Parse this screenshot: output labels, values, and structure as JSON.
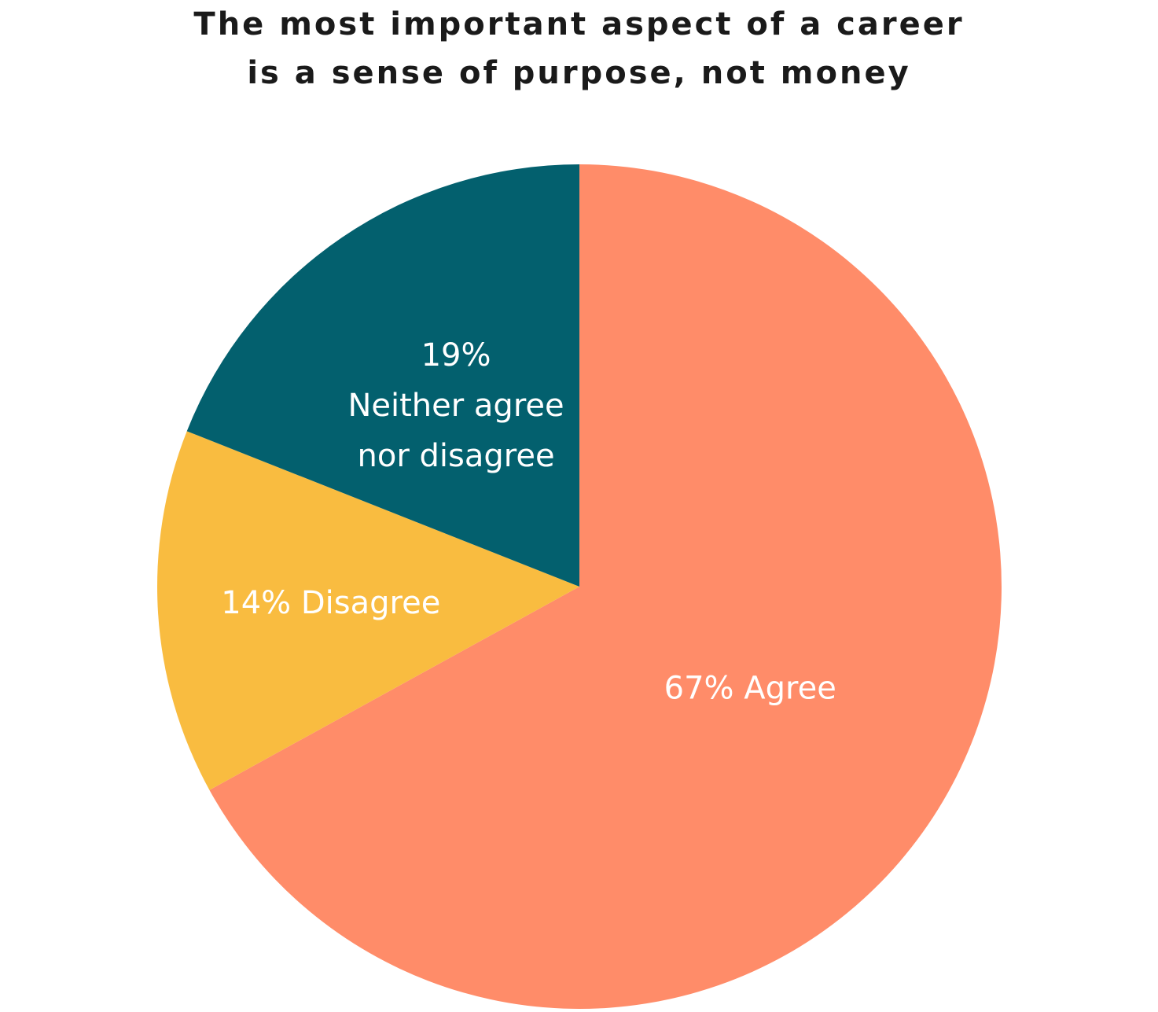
{
  "chart_data": {
    "type": "pie",
    "title_lines": [
      "The most important aspect of a career",
      "is a sense of purpose, not money"
    ],
    "slices": [
      {
        "name": "Agree",
        "value": 67,
        "label_lines": [
          "67% Agree"
        ],
        "color": "#FF8C69"
      },
      {
        "name": "Disagree",
        "value": 14,
        "label_lines": [
          "14% Disagree"
        ],
        "color": "#F9BC40"
      },
      {
        "name": "Neither agree nor disagree",
        "value": 19,
        "label_lines": [
          "19%",
          "Neither agree",
          "nor disagree"
        ],
        "color": "#03606E"
      }
    ],
    "start_angle": "12 o'clock",
    "direction": "clockwise",
    "legend": "none"
  }
}
